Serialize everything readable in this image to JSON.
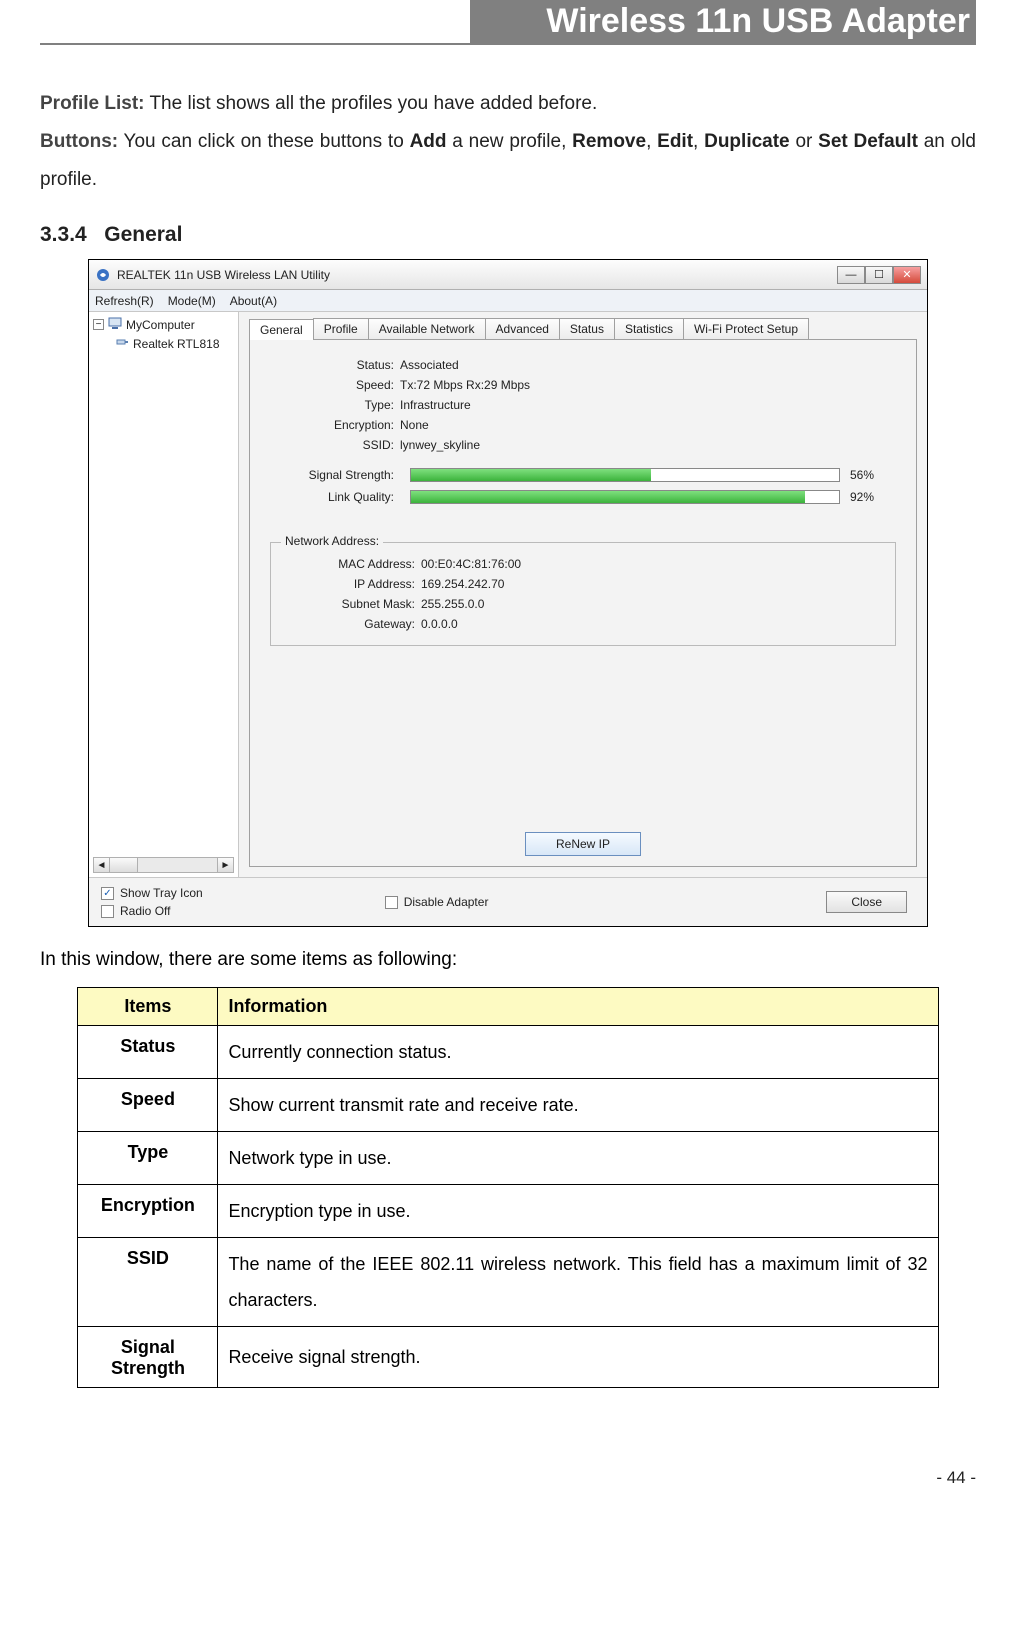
{
  "page": {
    "title": "Wireless 11n USB Adapter",
    "number": "- 44 -"
  },
  "intro": {
    "profile_list_label": "Profile List:",
    "profile_list_text": " The list shows all the profiles you have added before.",
    "buttons_label": "Buttons:",
    "buttons_pre": " You can click on these buttons to ",
    "add": "Add",
    "mid1": " a new profile, ",
    "remove": "Remove",
    "comma": ", ",
    "edit": "Edit",
    "dupl": "Duplicate",
    "or": " or ",
    "setdefault": "Set Default",
    "post": " an old profile."
  },
  "section": {
    "number": "3.3.4",
    "title": "General"
  },
  "scr": {
    "window_title": "REALTEK 11n USB Wireless LAN Utility",
    "menu": [
      "Refresh(R)",
      "Mode(M)",
      "About(A)"
    ],
    "tree": {
      "root": "MyComputer",
      "child": "Realtek RTL818"
    },
    "tabs": [
      "General",
      "Profile",
      "Available Network",
      "Advanced",
      "Status",
      "Statistics",
      "Wi-Fi Protect Setup"
    ],
    "active_tab": 0,
    "fields": {
      "status_label": "Status:",
      "status_value": "Associated",
      "speed_label": "Speed:",
      "speed_value": "Tx:72 Mbps Rx:29 Mbps",
      "type_label": "Type:",
      "type_value": "Infrastructure",
      "encryption_label": "Encryption:",
      "encryption_value": "None",
      "ssid_label": "SSID:",
      "ssid_value": "lynwey_skyline",
      "signal_label": "Signal Strength:",
      "signal_pct": 56,
      "link_label": "Link Quality:",
      "link_pct": 92
    },
    "network_address": {
      "legend": "Network Address:",
      "mac_label": "MAC Address:",
      "mac_value": "00:E0:4C:81:76:00",
      "ip_label": "IP Address:",
      "ip_value": "169.254.242.70",
      "subnet_label": "Subnet Mask:",
      "subnet_value": "255.255.0.0",
      "gateway_label": "Gateway:",
      "gateway_value": "0.0.0.0"
    },
    "renew_btn": "ReNew IP",
    "bottom": {
      "show_tray": "Show Tray Icon",
      "radio_off": "Radio Off",
      "disable_adapter": "Disable Adapter",
      "close": "Close"
    },
    "colors": {
      "bar_fill": "#52c452",
      "header_bg": "#808080"
    }
  },
  "caption": "In this window, there are some items as following:",
  "table": {
    "header_bg": "#fdfac2",
    "columns": [
      "Items",
      "Information"
    ],
    "rows": [
      {
        "item": "Status",
        "info": "Currently connection status."
      },
      {
        "item": "Speed",
        "info": "Show current transmit rate and receive rate."
      },
      {
        "item": "Type",
        "info": "Network type in use."
      },
      {
        "item": "Encryption",
        "info": "Encryption type in use."
      },
      {
        "item": "SSID",
        "info": "The name of the IEEE 802.11 wireless network. This field has a maximum limit of 32 characters."
      },
      {
        "item": "Signal Strength",
        "info": "Receive signal strength."
      }
    ]
  }
}
